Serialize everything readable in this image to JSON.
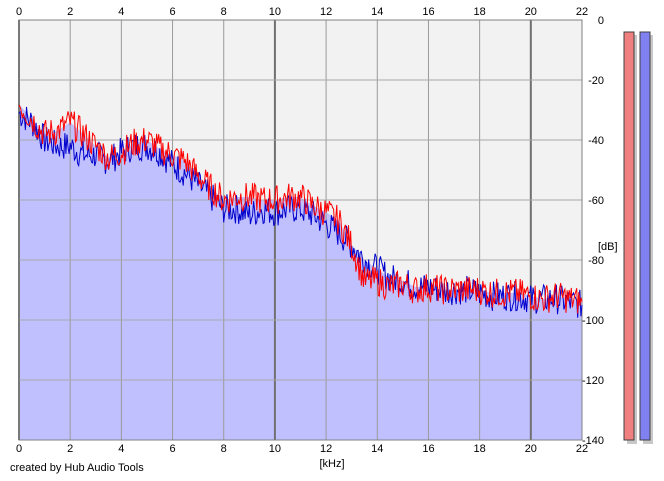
{
  "credit": "created by Hub Audio Tools",
  "chart_data": {
    "type": "area",
    "xlabel": "[kHz]",
    "ylabel": "[dB]",
    "xlim": [
      0,
      22
    ],
    "ylim": [
      -140,
      0
    ],
    "x_ticks": [
      0,
      2,
      4,
      6,
      8,
      10,
      12,
      14,
      16,
      18,
      20,
      22
    ],
    "x_tick_labels": [
      "0",
      "2",
      "4",
      "6",
      "8",
      "10",
      "12",
      "14",
      "16",
      "18",
      "20",
      "22"
    ],
    "y_ticks": [
      0,
      -20,
      -40,
      -60,
      -80,
      -100,
      -120,
      -140
    ],
    "y_tick_labels": [
      "0",
      "-20",
      "-40",
      "-60",
      "-80",
      "-100",
      "-120",
      "-140"
    ],
    "grid": true,
    "background_color": "#f2f2f2",
    "area_fill_color": "#c0c0ff",
    "series": [
      {
        "color": "#ff0000",
        "x": [
          0,
          0.5,
          1,
          1.5,
          2,
          2.5,
          3,
          3.5,
          4,
          4.5,
          5,
          5.5,
          6,
          6.5,
          7,
          7.5,
          8,
          8.5,
          9,
          9.5,
          10,
          10.5,
          11,
          11.5,
          12,
          12.5,
          13,
          13.5,
          14,
          14.5,
          15,
          15.5,
          16,
          16.5,
          17,
          17.5,
          18,
          18.5,
          19,
          19.5,
          20,
          20.5,
          21,
          21.5,
          22
        ],
        "y": [
          -28,
          -33,
          -38,
          -37,
          -34,
          -38,
          -42,
          -46,
          -44,
          -41,
          -40,
          -43,
          -45,
          -47,
          -52,
          -56,
          -60,
          -59,
          -59,
          -60,
          -60,
          -59,
          -59,
          -62,
          -64,
          -67,
          -75,
          -87,
          -87,
          -89,
          -88,
          -90,
          -89,
          -90,
          -90,
          -90,
          -90,
          -91,
          -91,
          -91,
          -92,
          -93,
          -92,
          -93,
          -94
        ]
      },
      {
        "color": "#0000cc",
        "x": [
          0,
          0.5,
          1,
          1.5,
          2,
          2.5,
          3,
          3.5,
          4,
          4.5,
          5,
          5.5,
          6,
          6.5,
          7,
          7.5,
          8,
          8.5,
          9,
          9.5,
          10,
          10.5,
          11,
          11.5,
          12,
          12.5,
          13,
          13.5,
          14,
          14.5,
          15,
          15.5,
          16,
          16.5,
          17,
          17.5,
          18,
          18.5,
          19,
          19.5,
          20,
          20.5,
          21,
          21.5,
          22
        ],
        "y": [
          -31,
          -34,
          -40,
          -42,
          -42,
          -45,
          -45,
          -47,
          -44,
          -42,
          -42,
          -44,
          -48,
          -51,
          -55,
          -59,
          -63,
          -63,
          -65,
          -63,
          -64,
          -63,
          -63,
          -65,
          -68,
          -71,
          -75,
          -80,
          -83,
          -86,
          -87,
          -89,
          -89,
          -90,
          -90,
          -90,
          -91,
          -92,
          -92,
          -92,
          -93,
          -93,
          -93,
          -94,
          -95
        ]
      }
    ],
    "meters": [
      {
        "color": "#f08080"
      },
      {
        "color": "#8080f0"
      }
    ]
  }
}
